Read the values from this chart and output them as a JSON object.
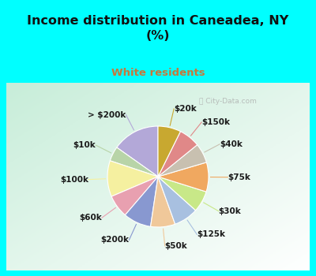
{
  "title": "Income distribution in Caneadea, NY\n(%)",
  "subtitle": "White residents",
  "title_color": "#111111",
  "subtitle_color": "#c8783a",
  "background_top": "#00ffff",
  "labels": [
    "> $200k",
    "$10k",
    "$100k",
    "$60k",
    "$200k",
    "$50k",
    "$125k",
    "$30k",
    "$75k",
    "$40k",
    "$150k",
    "$20k"
  ],
  "values": [
    14.5,
    4.5,
    11.0,
    7.0,
    8.5,
    7.5,
    7.5,
    6.5,
    9.0,
    6.0,
    6.5,
    7.0
  ],
  "colors": [
    "#b3a8d8",
    "#b8d4a8",
    "#f5f0a0",
    "#e8a0b0",
    "#8898d0",
    "#f0c89a",
    "#a8c0e0",
    "#c8e888",
    "#f0a860",
    "#c8c0b0",
    "#e08888",
    "#c8a830"
  ],
  "wedge_edge_color": "#ffffff",
  "label_fontsize": 7.5,
  "label_color": "#1a1a1a",
  "startangle": 90
}
